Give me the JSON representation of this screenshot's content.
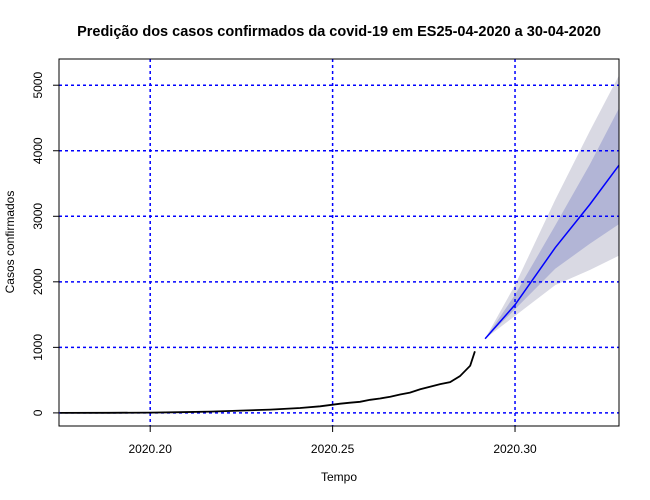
{
  "chart_data": {
    "type": "line",
    "title": "Predição dos casos confirmados da covid-19 em ES25-04-2020 a 30-04-2020",
    "xlabel": "Tempo",
    "ylabel": "Casos confirmados",
    "xlim": [
      2020.175,
      2020.3285
    ],
    "ylim": [
      -200,
      5400
    ],
    "x_ticks": [
      2020.2,
      2020.25,
      2020.3
    ],
    "x_tick_labels": [
      "2020.20",
      "2020.25",
      "2020.30"
    ],
    "y_ticks": [
      0,
      1000,
      2000,
      3000,
      4000,
      5000
    ],
    "y_tick_labels": [
      "0",
      "1000",
      "2000",
      "3000",
      "4000",
      "5000"
    ],
    "grid": true,
    "grid_color": "#0000ff",
    "series": [
      {
        "role": "observed",
        "color": "#000000",
        "x": [
          2020.1753,
          2020.189,
          2020.2,
          2020.2082,
          2020.2164,
          2020.2247,
          2020.2329,
          2020.2411,
          2020.2466,
          2020.2521,
          2020.2548,
          2020.2575,
          2020.2603,
          2020.263,
          2020.2658,
          2020.2685,
          2020.2712,
          2020.274,
          2020.2767,
          2020.2795,
          2020.2822,
          2020.2849,
          2020.2877,
          2020.289
        ],
        "y": [
          0,
          2,
          5,
          10,
          20,
          35,
          50,
          75,
          100,
          140,
          155,
          170,
          200,
          220,
          245,
          280,
          310,
          360,
          400,
          440,
          470,
          560,
          720,
          940
        ]
      },
      {
        "role": "forecast",
        "color": "#0000ff",
        "x": [
          2020.2918,
          2020.3,
          2020.311,
          2020.3205,
          2020.3285
        ],
        "y": [
          1130,
          1650,
          2520,
          3180,
          3780
        ]
      }
    ],
    "intervals": [
      {
        "level": "outer",
        "color": "#d9d9e3",
        "x": [
          2020.2918,
          2020.3,
          2020.311,
          2020.3205,
          2020.3285
        ],
        "lower": [
          1130,
          1480,
          1950,
          2180,
          2400
        ],
        "upper": [
          1130,
          1950,
          3250,
          4300,
          5150
        ]
      },
      {
        "level": "inner",
        "color": "#b2b5d6",
        "x": [
          2020.2918,
          2020.3,
          2020.311,
          2020.3205,
          2020.3285
        ],
        "lower": [
          1130,
          1580,
          2200,
          2580,
          2880
        ],
        "upper": [
          1130,
          1800,
          2860,
          3790,
          4650
        ]
      }
    ]
  }
}
